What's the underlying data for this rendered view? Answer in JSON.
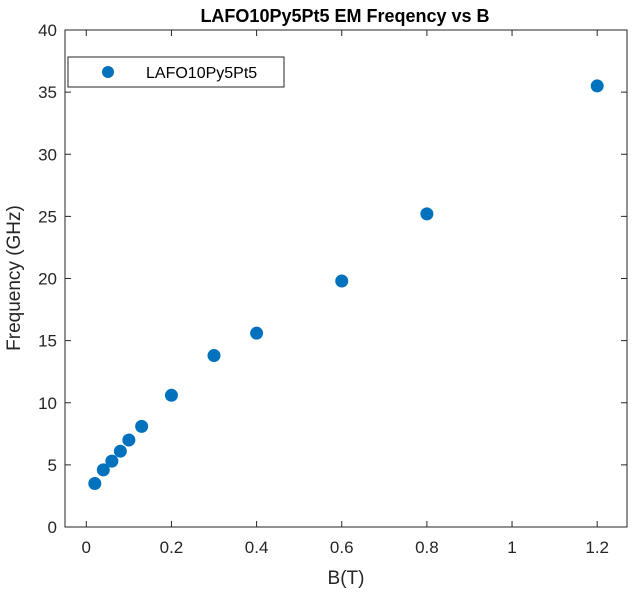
{
  "chart_data": {
    "type": "scatter",
    "title": "LAFO10Py5Pt5 EM Freqency vs B",
    "xlabel": "B(T)",
    "ylabel": "Frequency (GHz)",
    "xlim": [
      -0.05,
      1.27
    ],
    "ylim": [
      0,
      40
    ],
    "xticks": [
      0,
      0.2,
      0.4,
      0.6,
      0.8,
      1,
      1.2
    ],
    "xtick_labels": [
      "0",
      "0.2",
      "0.4",
      "0.6",
      "0.8",
      "1",
      "1.2"
    ],
    "yticks": [
      0,
      5,
      10,
      15,
      20,
      25,
      30,
      35,
      40
    ],
    "ytick_labels": [
      "0",
      "5",
      "10",
      "15",
      "20",
      "25",
      "30",
      "35",
      "40"
    ],
    "grid": false,
    "legend_position": "top-left",
    "series": [
      {
        "name": "LAFO10Py5Pt5",
        "color": "#0072BD",
        "marker": "circle",
        "x": [
          0.02,
          0.04,
          0.06,
          0.08,
          0.1,
          0.13,
          0.2,
          0.3,
          0.4,
          0.6,
          0.8,
          1.2
        ],
        "y": [
          3.5,
          4.6,
          5.3,
          6.1,
          7.0,
          8.1,
          10.6,
          13.8,
          15.6,
          19.8,
          25.2,
          35.5
        ]
      }
    ]
  }
}
